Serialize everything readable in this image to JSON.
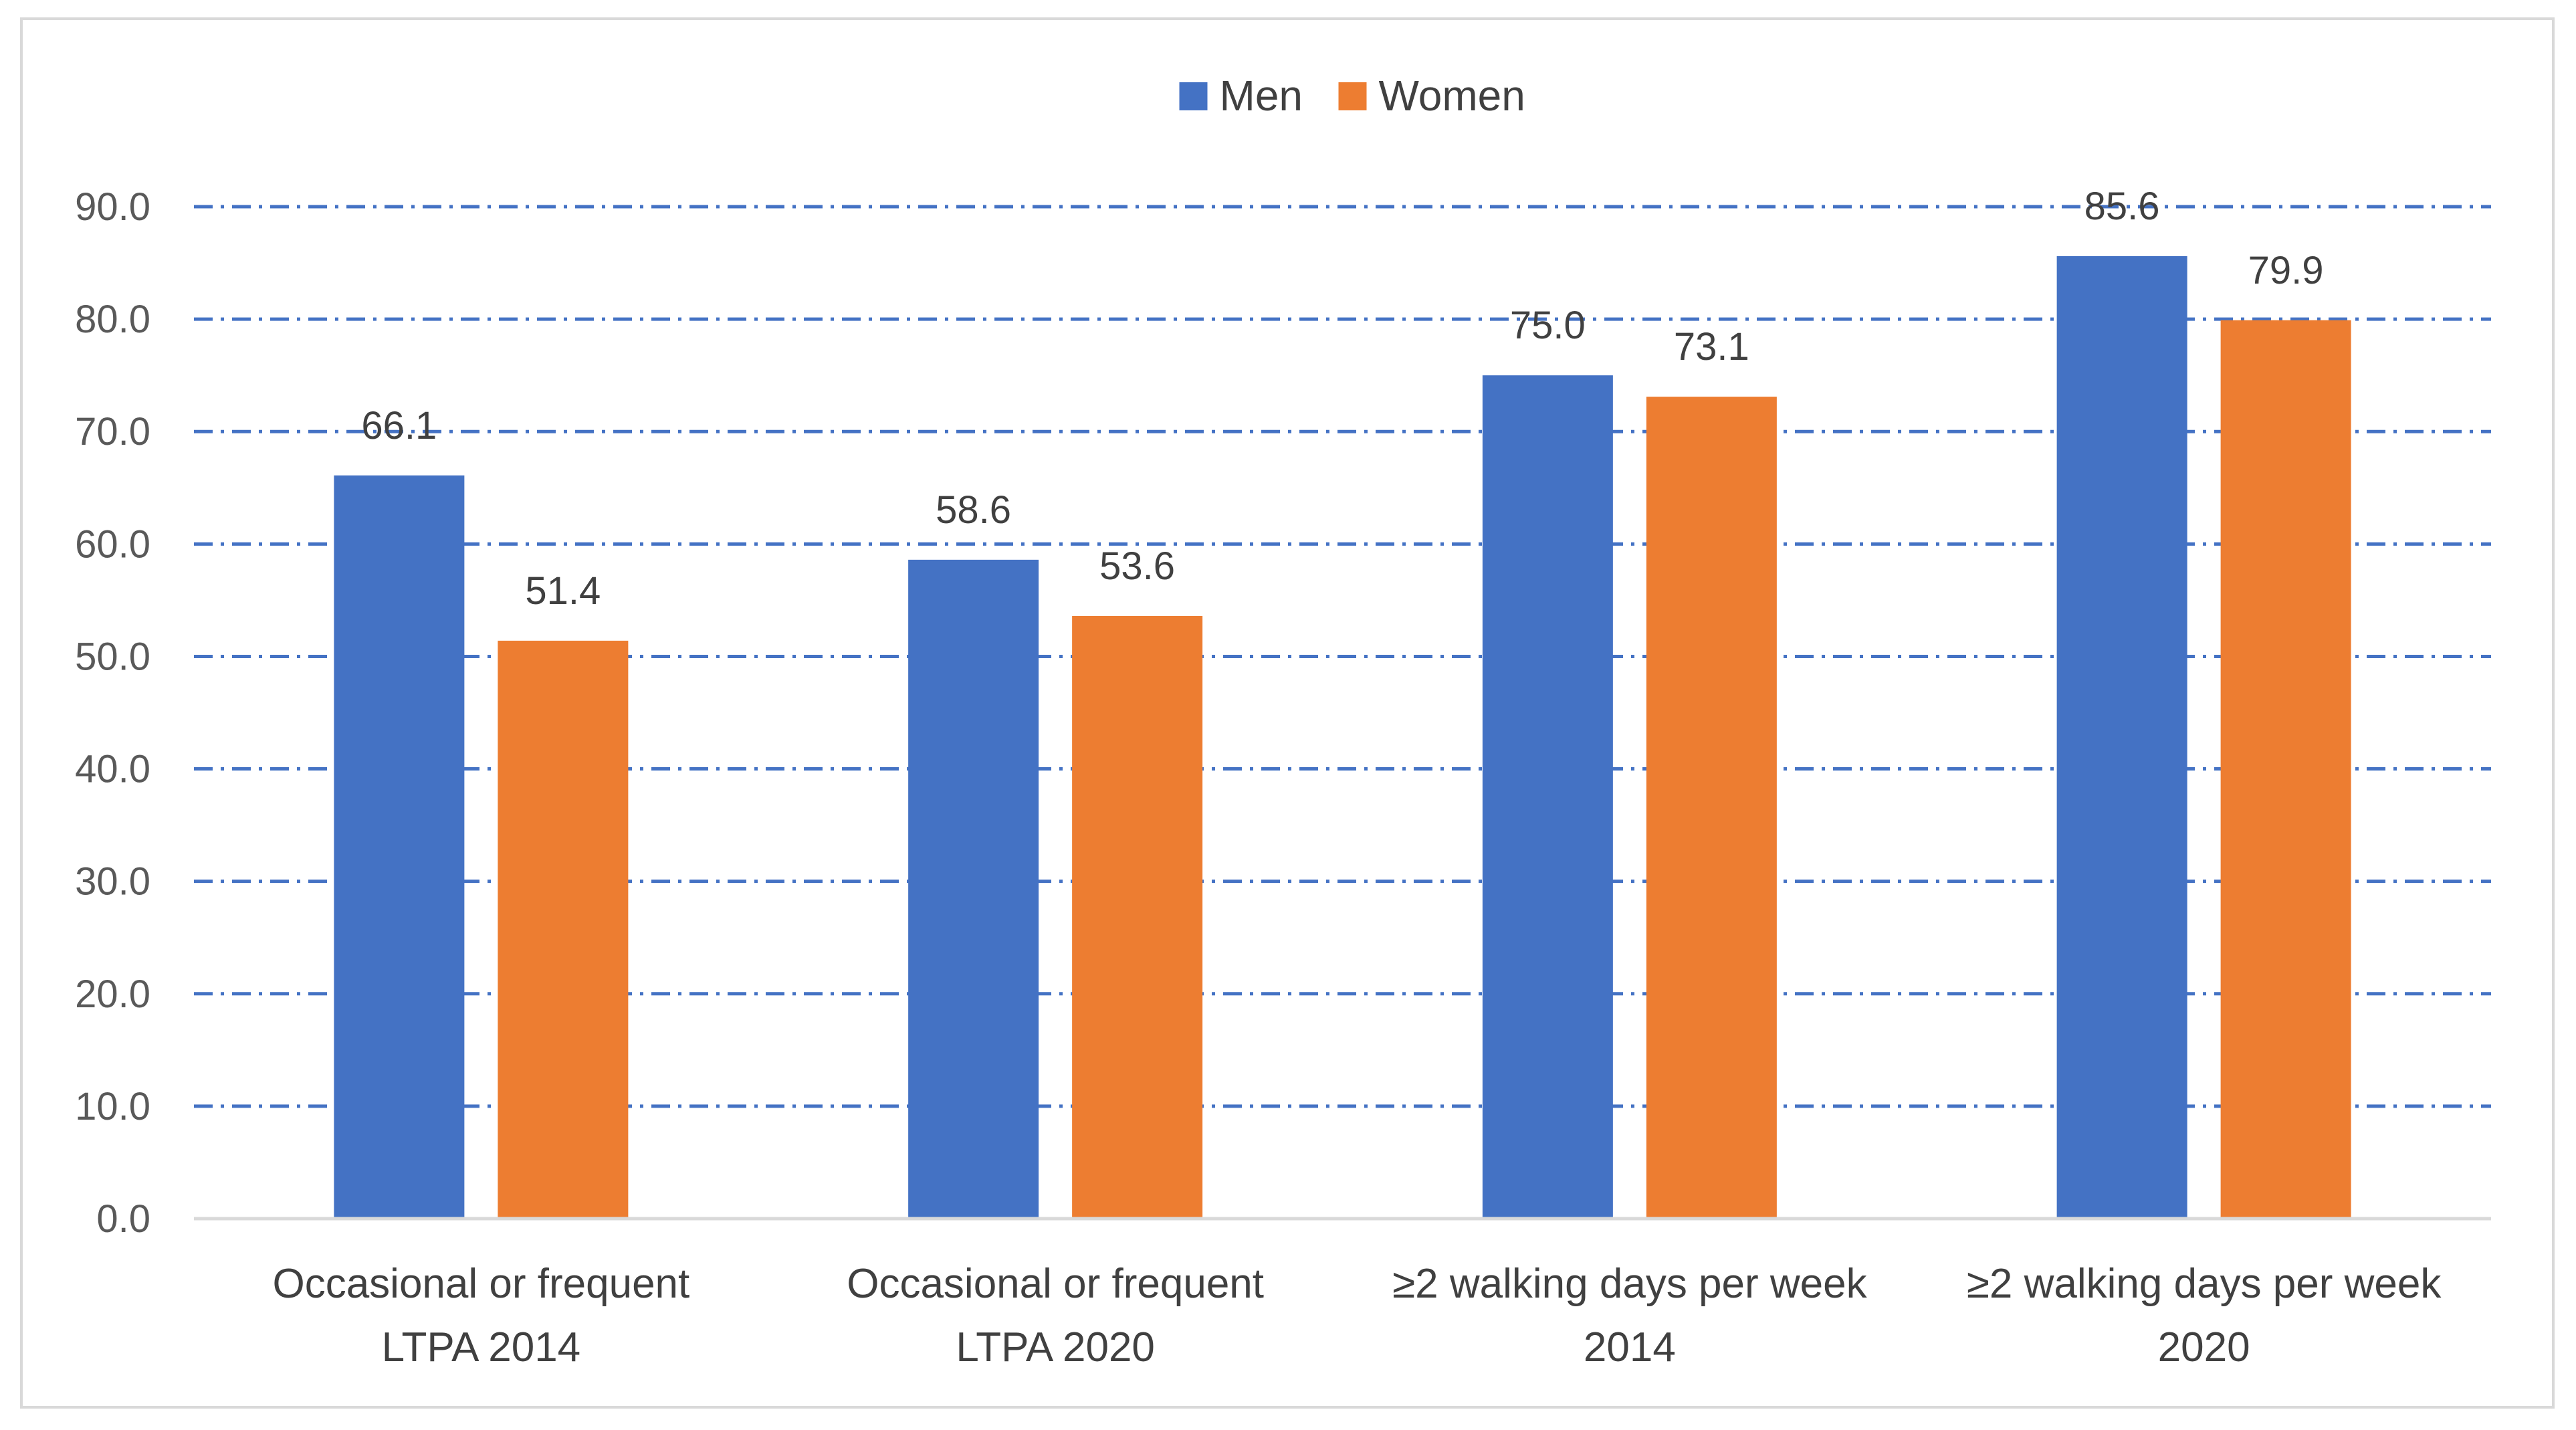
{
  "chart_data": {
    "type": "bar",
    "title": "",
    "xlabel": "",
    "ylabel": "",
    "ylim": [
      0,
      90
    ],
    "ytick_step": 10,
    "ytick_labels": [
      "0.0",
      "10.0",
      "20.0",
      "30.0",
      "40.0",
      "50.0",
      "60.0",
      "70.0",
      "80.0",
      "90.0"
    ],
    "grid": true,
    "legend_position": "top-center",
    "categories": [
      [
        "Occasional or frequent",
        "LTPA 2014"
      ],
      [
        "Occasional or frequent",
        "LTPA 2020"
      ],
      [
        "≥2 walking days per week",
        "2014"
      ],
      [
        "≥2 walking days per week",
        "2020"
      ]
    ],
    "series": [
      {
        "name": "Men",
        "color": "#4472c4",
        "values": [
          66.1,
          58.6,
          75.0,
          85.6
        ]
      },
      {
        "name": "Women",
        "color": "#ed7d31",
        "values": [
          51.4,
          53.6,
          73.1,
          79.9
        ]
      }
    ],
    "grid_color": "#4472c4",
    "axis_color": "#d9d9d9"
  }
}
